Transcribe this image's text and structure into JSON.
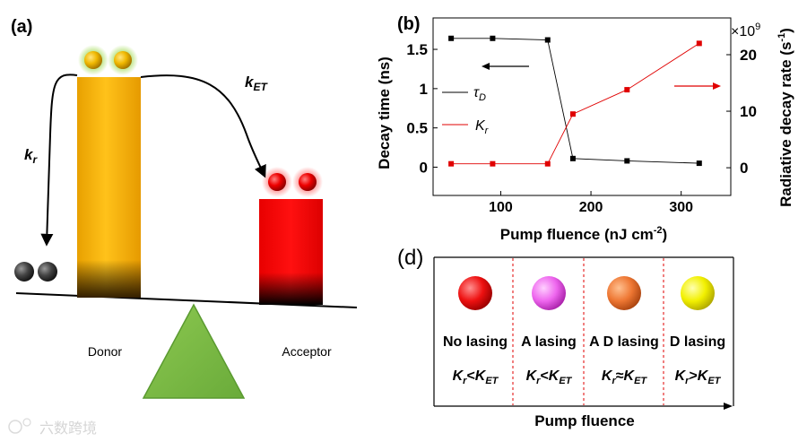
{
  "panel_a": {
    "label": "(a)",
    "k_r_main": "k",
    "k_r_sub": "r",
    "k_et_main": "k",
    "k_et_sub": "ET",
    "donor_label": "Donor",
    "acceptor_label": "Acceptor"
  },
  "panel_b": {
    "label": "(b)",
    "chart_data": {
      "type": "line",
      "xlabel_main": "Pump   fluence (nJ cm",
      "xlabel_sup": "-2",
      "xlabel_end": ")",
      "ylabel_left": "Decay time  (ns)",
      "ylabel_right_main": "Radiative decay rate (s",
      "ylabel_right_sup": "-1",
      "ylabel_right_end": ")",
      "right_multiplier": "×10",
      "right_multiplier_exp": "9",
      "xlim": [
        25,
        355
      ],
      "ylim_left": [
        -0.36,
        1.9
      ],
      "ylim_right": [
        -4.9,
        26.5
      ],
      "x_ticks": [
        100,
        200,
        300
      ],
      "y_ticks_left": [
        0,
        0.5,
        1,
        1.5
      ],
      "y_ticks_left_labels": [
        "0",
        "0.5",
        "1",
        "1.5"
      ],
      "y_ticks_right": [
        0,
        10,
        20
      ],
      "series": [
        {
          "name": "τ",
          "name_sub": "D",
          "color": "#000000",
          "axis": "left",
          "x": [
            45,
            91,
            152,
            180,
            240,
            320
          ],
          "values": [
            1.64,
            1.64,
            1.62,
            0.11,
            0.08,
            0.05
          ]
        },
        {
          "name": "K",
          "name_sub": "r",
          "color": "#e00000",
          "axis": "right",
          "x": [
            45,
            91,
            152,
            180,
            240,
            320
          ],
          "values": [
            0.7,
            0.7,
            0.7,
            9.5,
            13.8,
            22.0
          ]
        }
      ]
    }
  },
  "panel_d": {
    "label": "(d)",
    "xlabel": "Pump   fluence",
    "columns": [
      {
        "state": "No lasing",
        "color": "#ee1111",
        "rel_k": "K",
        "rel_sub1": "r",
        "rel_op": "<",
        "rel_k2": "K",
        "rel_sub2": "ET"
      },
      {
        "state": "A  lasing",
        "color": "#ee66ee",
        "rel_k": "K",
        "rel_sub1": "r",
        "rel_op": "<",
        "rel_k2": "K",
        "rel_sub2": "ET"
      },
      {
        "state": "A D lasing",
        "color": "#ee7733",
        "rel_k": "K",
        "rel_sub1": "r",
        "rel_op": "≈",
        "rel_k2": "K",
        "rel_sub2": "ET"
      },
      {
        "state": "D lasing",
        "color": "#eeee00",
        "rel_k": "K",
        "rel_sub1": "r",
        "rel_op": ">",
        "rel_k2": "K",
        "rel_sub2": "ET"
      }
    ]
  },
  "watermark": "六数跨境"
}
